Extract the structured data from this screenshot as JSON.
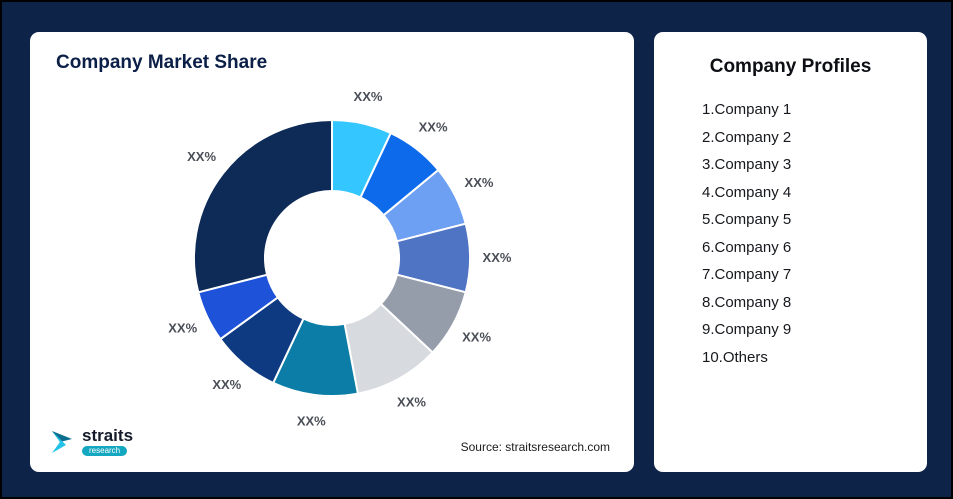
{
  "chart_data": {
    "type": "pie",
    "subtype": "donut",
    "title": "Company Market Share",
    "labels": [
      "XX%",
      "XX%",
      "XX%",
      "XX%",
      "XX%",
      "XX%",
      "XX%",
      "XX%",
      "XX%",
      "XX%"
    ],
    "values": [
      7,
      7,
      7,
      8,
      8,
      10,
      10,
      8,
      6,
      29
    ],
    "colors": [
      "#33c6ff",
      "#0d6aeb",
      "#6d9ff2",
      "#4f74c4",
      "#959dab",
      "#d7dadf",
      "#0b7da6",
      "#0e3a82",
      "#1d52d9",
      "#0e2a57"
    ],
    "legend": "none",
    "start_angle_deg": -90,
    "direction": "clockwise"
  },
  "source": "Source: straitsresearch.com",
  "logo": {
    "name": "straits",
    "sub": "research"
  },
  "profiles": {
    "title": "Company Profiles",
    "items": [
      "1.Company 1",
      "2.Company 2",
      "3.Company 3",
      "4.Company 4",
      "5.Company 5",
      "6.Company 6",
      "7.Company 7",
      "8.Company 8",
      "9.Company 9",
      "10.Others"
    ]
  }
}
